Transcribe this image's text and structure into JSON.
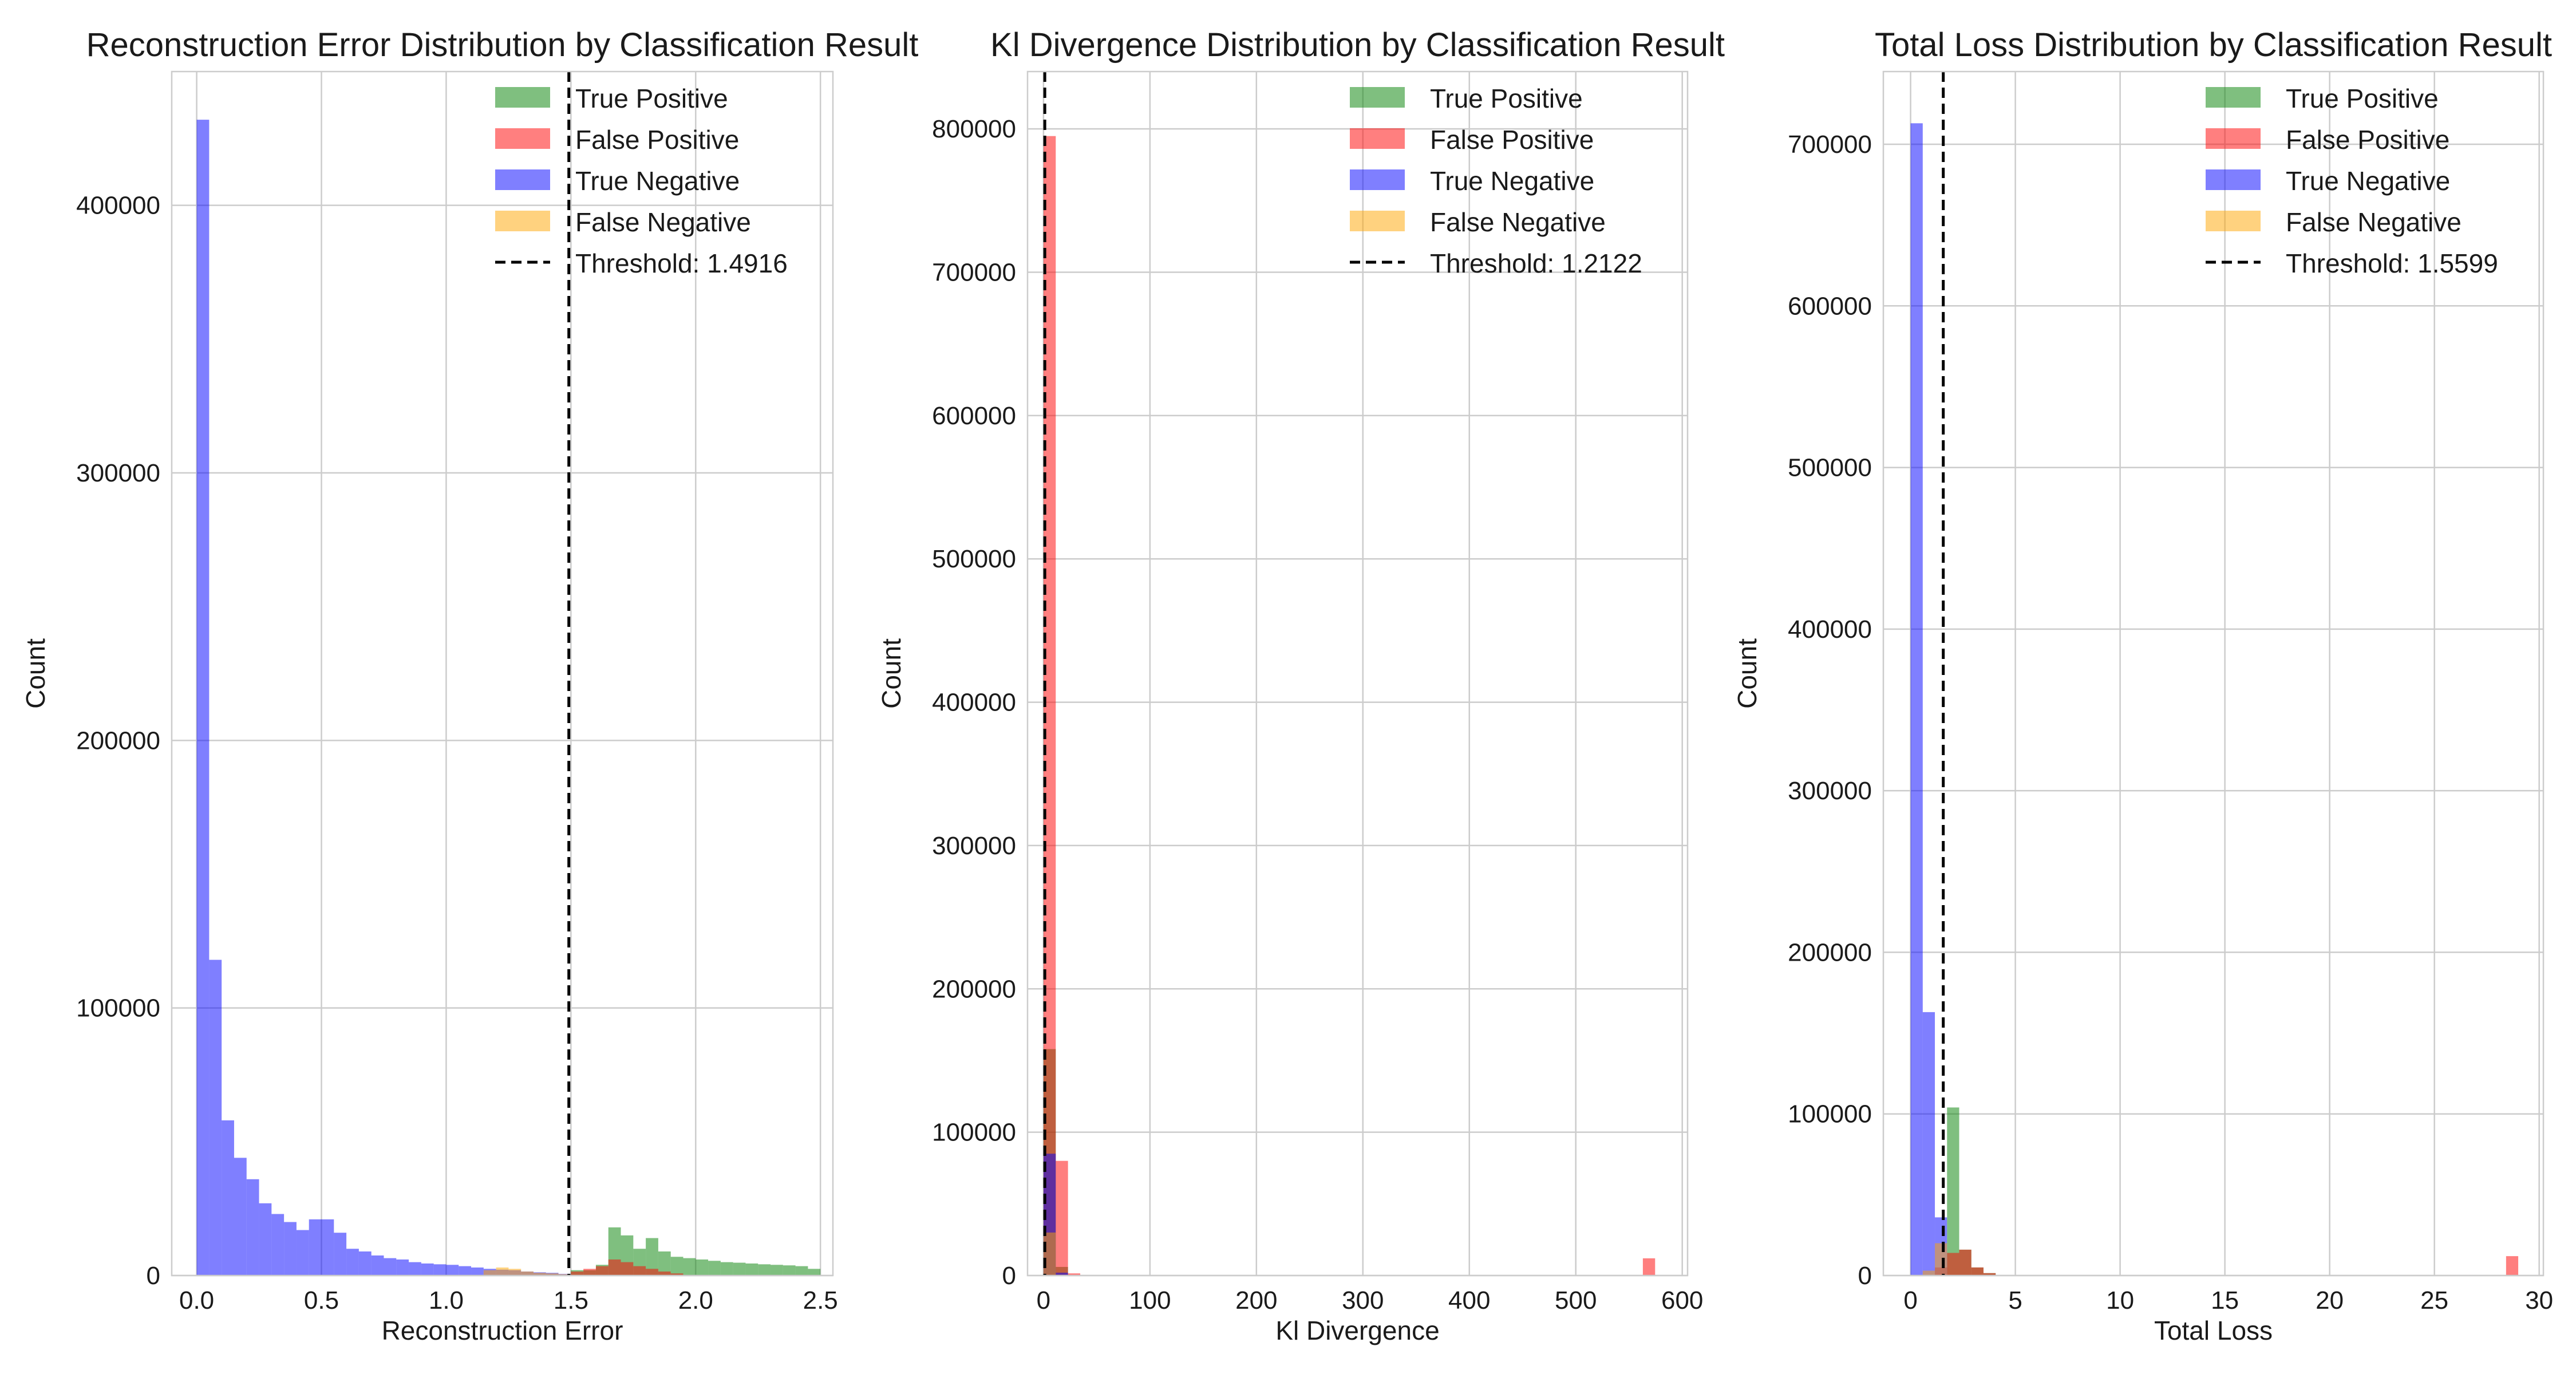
{
  "chart_data": [
    {
      "type": "bar",
      "title": "Reconstruction Error Distribution by Classification Result",
      "xlabel": "Reconstruction Error",
      "ylabel": "Count",
      "xlim": [
        -0.1,
        2.55
      ],
      "ylim": [
        0,
        450000
      ],
      "xticks": [
        0.0,
        0.5,
        1.0,
        1.5,
        2.0,
        2.5
      ],
      "xtick_labels": [
        "0.0",
        "0.5",
        "1.0",
        "1.5",
        "2.0",
        "2.5"
      ],
      "yticks": [
        0,
        100000,
        200000,
        300000,
        400000
      ],
      "ytick_labels": [
        "0",
        "100000",
        "200000",
        "300000",
        "400000"
      ],
      "grid": true,
      "legend_position": "top-right",
      "threshold": {
        "value": 1.4916,
        "label": "Threshold: 1.4916"
      },
      "bin_width": 0.05,
      "series": [
        {
          "name": "True Positive",
          "color": "#008000",
          "bins": [
            [
              1.5,
              2000
            ],
            [
              1.55,
              2000
            ],
            [
              1.6,
              4000
            ],
            [
              1.65,
              18000
            ],
            [
              1.7,
              15000
            ],
            [
              1.75,
              10000
            ],
            [
              1.8,
              14000
            ],
            [
              1.85,
              9000
            ],
            [
              1.9,
              7000
            ],
            [
              1.95,
              6500
            ],
            [
              2.0,
              6000
            ],
            [
              2.05,
              5500
            ],
            [
              2.1,
              5000
            ],
            [
              2.15,
              4800
            ],
            [
              2.2,
              4500
            ],
            [
              2.25,
              4200
            ],
            [
              2.3,
              4000
            ],
            [
              2.35,
              3800
            ],
            [
              2.4,
              3500
            ],
            [
              2.45,
              2500
            ]
          ]
        },
        {
          "name": "False Positive",
          "color": "#ff0000",
          "bins": [
            [
              1.5,
              1500
            ],
            [
              1.55,
              2500
            ],
            [
              1.6,
              3500
            ],
            [
              1.65,
              6000
            ],
            [
              1.7,
              5000
            ],
            [
              1.75,
              3500
            ],
            [
              1.8,
              2500
            ],
            [
              1.85,
              1500
            ],
            [
              1.9,
              800
            ]
          ]
        },
        {
          "name": "True Negative",
          "color": "#0000ff",
          "bins": [
            [
              0.0,
              432000
            ],
            [
              0.05,
              118000
            ],
            [
              0.1,
              58000
            ],
            [
              0.15,
              44000
            ],
            [
              0.2,
              36000
            ],
            [
              0.25,
              27000
            ],
            [
              0.3,
              23000
            ],
            [
              0.35,
              20000
            ],
            [
              0.4,
              17000
            ],
            [
              0.45,
              21000
            ],
            [
              0.5,
              21000
            ],
            [
              0.55,
              16000
            ],
            [
              0.6,
              10000
            ],
            [
              0.65,
              9000
            ],
            [
              0.7,
              7500
            ],
            [
              0.75,
              6500
            ],
            [
              0.8,
              6000
            ],
            [
              0.85,
              5000
            ],
            [
              0.9,
              4500
            ],
            [
              0.95,
              4200
            ],
            [
              1.0,
              4000
            ],
            [
              1.05,
              3500
            ],
            [
              1.1,
              3000
            ],
            [
              1.15,
              2500
            ],
            [
              1.2,
              2200
            ],
            [
              1.25,
              2000
            ],
            [
              1.3,
              1500
            ],
            [
              1.35,
              1200
            ],
            [
              1.4,
              1000
            ],
            [
              1.45,
              600
            ]
          ]
        },
        {
          "name": "False Negative",
          "color": "#ffa500",
          "bins": [
            [
              1.15,
              2000
            ],
            [
              1.2,
              3000
            ],
            [
              1.25,
              2500
            ],
            [
              1.3,
              1500
            ],
            [
              1.35,
              1000
            ],
            [
              1.4,
              800
            ],
            [
              1.45,
              500
            ]
          ]
        }
      ]
    },
    {
      "type": "bar",
      "title": "Kl Divergence Distribution by Classification Result",
      "xlabel": "Kl Divergence",
      "ylabel": "Count",
      "xlim": [
        -15,
        605
      ],
      "ylim": [
        0,
        840000
      ],
      "xticks": [
        0,
        100,
        200,
        300,
        400,
        500,
        600
      ],
      "xtick_labels": [
        "0",
        "100",
        "200",
        "300",
        "400",
        "500",
        "600"
      ],
      "yticks": [
        0,
        100000,
        200000,
        300000,
        400000,
        500000,
        600000,
        700000,
        800000
      ],
      "ytick_labels": [
        "0",
        "100000",
        "200000",
        "300000",
        "400000",
        "500000",
        "600000",
        "700000",
        "800000"
      ],
      "grid": true,
      "legend_position": "top-right",
      "threshold": {
        "value": 1.2122,
        "label": "Threshold: 1.2122"
      },
      "bin_width": 11.5,
      "series": [
        {
          "name": "True Positive",
          "color": "#008000",
          "bins": [
            [
              0,
              158000
            ],
            [
              11.5,
              6000
            ]
          ]
        },
        {
          "name": "False Positive",
          "color": "#ff0000",
          "bins": [
            [
              0,
              795000
            ],
            [
              11.5,
              80000
            ],
            [
              23,
              1500
            ],
            [
              563,
              12000
            ]
          ]
        },
        {
          "name": "True Negative",
          "color": "#0000ff",
          "bins": [
            [
              0,
              85000
            ],
            [
              11.5,
              2000
            ]
          ]
        },
        {
          "name": "False Negative",
          "color": "#ffa500",
          "bins": [
            [
              0,
              30000
            ]
          ]
        }
      ]
    },
    {
      "type": "bar",
      "title": "Total Loss Distribution by Classification Result",
      "xlabel": "Total Loss",
      "ylabel": "Count",
      "xlim": [
        -1.3,
        30.2
      ],
      "ylim": [
        0,
        745000
      ],
      "xticks": [
        0,
        5,
        10,
        15,
        20,
        25,
        30
      ],
      "xtick_labels": [
        "0",
        "5",
        "10",
        "15",
        "20",
        "25",
        "30"
      ],
      "yticks": [
        0,
        100000,
        200000,
        300000,
        400000,
        500000,
        600000,
        700000
      ],
      "ytick_labels": [
        "0",
        "100000",
        "200000",
        "300000",
        "400000",
        "500000",
        "600000",
        "700000"
      ],
      "grid": true,
      "legend_position": "top-right",
      "threshold": {
        "value": 1.5599,
        "label": "Threshold: 1.5599"
      },
      "bin_width": 0.58,
      "series": [
        {
          "name": "True Positive",
          "color": "#008000",
          "bins": [
            [
              1.74,
              104000
            ],
            [
              2.32,
              16000
            ],
            [
              2.9,
              5000
            ],
            [
              3.48,
              1500
            ]
          ]
        },
        {
          "name": "False Positive",
          "color": "#ff0000",
          "bins": [
            [
              1.16,
              5000
            ],
            [
              1.74,
              14000
            ],
            [
              2.32,
              16000
            ],
            [
              2.9,
              5000
            ],
            [
              3.48,
              1500
            ],
            [
              28.42,
              12000
            ]
          ]
        },
        {
          "name": "True Negative",
          "color": "#0000ff",
          "bins": [
            [
              0,
              713000
            ],
            [
              0.58,
              163000
            ],
            [
              1.16,
              36000
            ]
          ]
        },
        {
          "name": "False Negative",
          "color": "#ffa500",
          "bins": [
            [
              0.58,
              3000
            ],
            [
              1.16,
              20000
            ]
          ]
        }
      ]
    }
  ]
}
